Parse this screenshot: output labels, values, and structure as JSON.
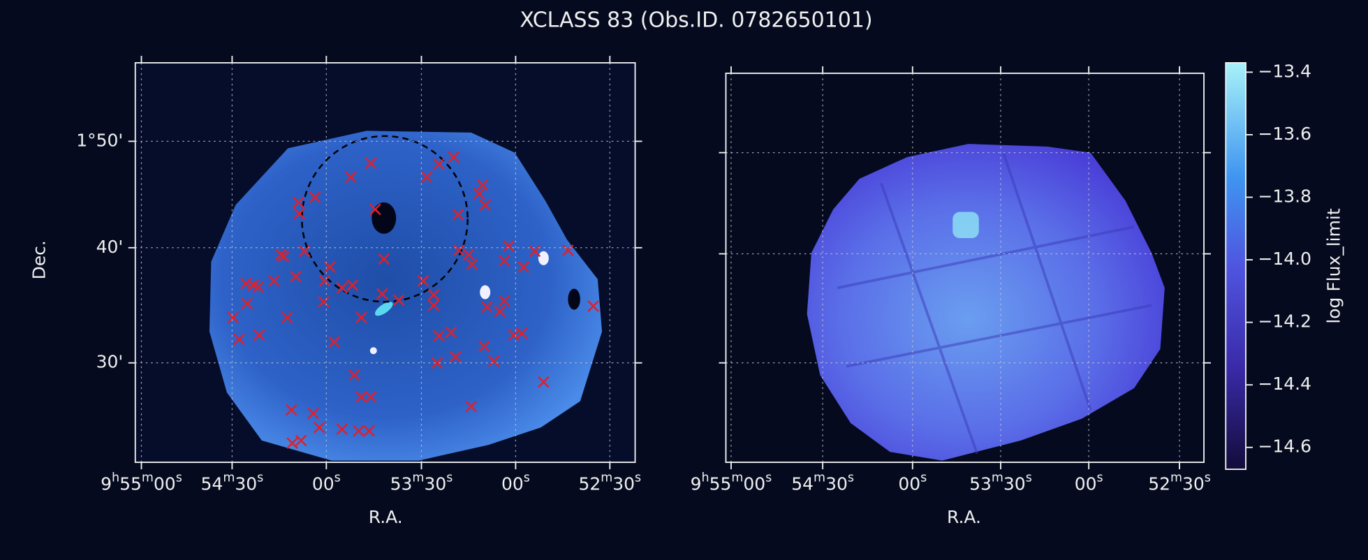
{
  "title": "XCLASS 83 (Obs.ID. 0782650101)",
  "left_panel": {
    "xlabel": "R.A.",
    "ylabel": "Dec.",
    "xticks": [
      "9h55m00s",
      "54m30s",
      "00s",
      "53m30s",
      "00s",
      "52m30s"
    ],
    "yticks": [
      "1°50'",
      "40'",
      "30'"
    ]
  },
  "right_panel": {
    "xlabel": "R.A.",
    "xticks": [
      "9h55m00s",
      "54m30s",
      "00s",
      "53m30s",
      "00s",
      "52m30s"
    ]
  },
  "colorbar": {
    "label": "log Flux_limit",
    "lim": [
      -14.67,
      -13.37
    ],
    "ticks": [
      {
        "value": -13.4,
        "label": "−13.4"
      },
      {
        "value": -13.6,
        "label": "−13.6"
      },
      {
        "value": -13.8,
        "label": "−13.8"
      },
      {
        "value": -14.0,
        "label": "−14.0"
      },
      {
        "value": -14.2,
        "label": "−14.2"
      },
      {
        "value": -14.4,
        "label": "−14.4"
      },
      {
        "value": -14.6,
        "label": "−14.6"
      }
    ]
  }
}
